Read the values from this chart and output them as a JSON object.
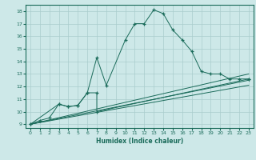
{
  "xlabel": "Humidex (Indice chaleur)",
  "bg_color": "#cde8e8",
  "line_color": "#1a6b5a",
  "grid_color": "#aacccc",
  "xlim": [
    -0.5,
    23.5
  ],
  "ylim": [
    8.7,
    18.5
  ],
  "yticks": [
    9,
    10,
    11,
    12,
    13,
    14,
    15,
    16,
    17,
    18
  ],
  "xticks": [
    0,
    1,
    2,
    3,
    4,
    5,
    6,
    7,
    8,
    9,
    10,
    11,
    12,
    13,
    14,
    15,
    16,
    17,
    18,
    19,
    20,
    21,
    22,
    23
  ],
  "main_x": [
    0,
    1,
    2,
    3,
    4,
    5,
    6,
    7,
    8,
    10,
    11,
    12,
    13,
    14,
    15,
    16,
    17,
    18,
    19,
    20,
    21,
    22,
    23
  ],
  "main_y": [
    9.0,
    9.3,
    9.5,
    10.6,
    10.4,
    10.5,
    11.5,
    14.3,
    12.1,
    15.7,
    17.0,
    17.0,
    18.1,
    17.8,
    16.5,
    15.7,
    14.8,
    13.2,
    13.0,
    13.0,
    12.6,
    12.6,
    12.6
  ],
  "low_x": [
    0,
    3,
    4,
    5,
    6,
    7,
    7,
    23
  ],
  "low_y": [
    9.0,
    10.6,
    10.4,
    10.5,
    11.5,
    11.5,
    10.0,
    12.6
  ],
  "trend1_x": [
    0,
    23
  ],
  "trend1_y": [
    9.0,
    13.0
  ],
  "trend2_x": [
    0,
    23
  ],
  "trend2_y": [
    9.0,
    12.5
  ],
  "trend3_x": [
    0,
    23
  ],
  "trend3_y": [
    9.0,
    12.1
  ]
}
